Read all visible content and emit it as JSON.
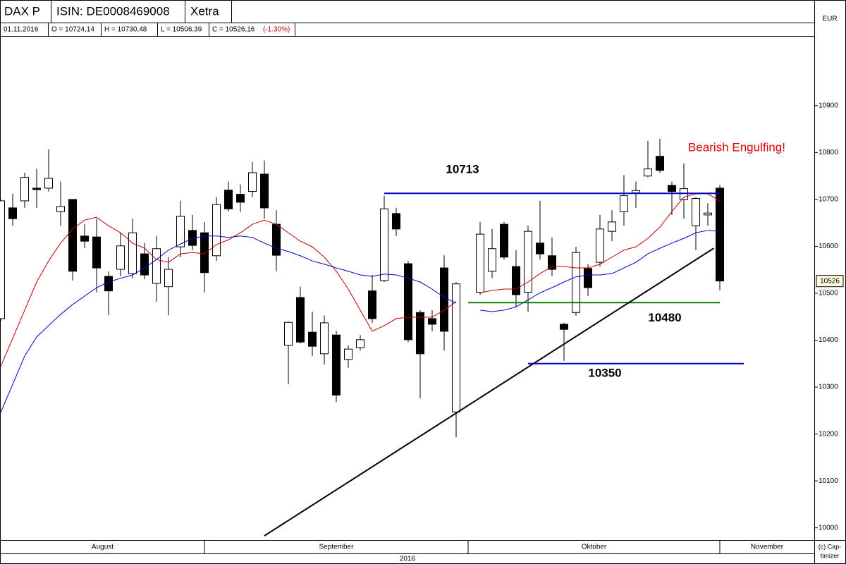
{
  "header": {
    "symbol": "DAX P",
    "isin": "ISIN: DE0008469008",
    "exchange": "Xetra",
    "currency": "EUR",
    "date": "01.11.2016",
    "open": "O = 10724,14",
    "high": "H = 10730,48",
    "low": "L = 10506,39",
    "close": "C = 10526,16",
    "change": "(-1.30%)"
  },
  "chart_data": {
    "type": "candlestick",
    "open": [
      10446,
      10682,
      10697,
      10724,
      10724,
      10674,
      10700,
      10622,
      10620,
      10536,
      10551,
      10542,
      10584,
      10521,
      10514,
      10599,
      10634,
      10629,
      10580,
      10720,
      10711,
      10717,
      10754,
      10647,
      10389,
      10491,
      10417,
      10371,
      10411,
      10359,
      10384,
      10505,
      10527,
      10670,
      10563,
      10459,
      10446,
      10554,
      10247,
      null,
      10502,
      10547,
      10647,
      10557,
      10502,
      10607,
      10580,
      10434,
      10459,
      10553,
      10566,
      10632,
      10674,
      10714,
      10750,
      10792,
      10730,
      10700,
      10644,
      10667,
      10724.14
    ],
    "high": [
      10700,
      10712,
      10757,
      10765,
      10807,
      10738,
      10700,
      10647,
      10659,
      10547,
      10629,
      10659,
      10607,
      10622,
      10577,
      10697,
      10667,
      10652,
      10705,
      10738,
      10732,
      10780,
      10783,
      10677,
      10440,
      10514,
      10461,
      10453,
      10420,
      10389,
      10411,
      10539,
      10708,
      10682,
      10569,
      10464,
      10464,
      10581,
      10524,
      null,
      10652,
      10637,
      10652,
      10592,
      10644,
      10697,
      10619,
      10437,
      10599,
      10562,
      10667,
      10677,
      10752,
      10738,
      10825,
      10829,
      10738,
      10777,
      10705,
      10692,
      10730.48
    ],
    "low": [
      10440,
      10644,
      10682,
      10682,
      10717,
      10644,
      10527,
      10596,
      10502,
      10453,
      10536,
      10532,
      10530,
      10482,
      10453,
      10577,
      10592,
      10502,
      10569,
      10674,
      10674,
      10705,
      10659,
      10547,
      10306,
      10393,
      10366,
      10348,
      10268,
      10341,
      10378,
      10437,
      10524,
      10622,
      10396,
      10276,
      10419,
      10378,
      10193,
      null,
      10497,
      10532,
      10572,
      10471,
      10461,
      10572,
      10536,
      10356,
      10452,
      10494,
      10557,
      10611,
      10644,
      10682,
      10747,
      10757,
      10667,
      10659,
      10592,
      10644,
      10506.39
    ],
    "close": [
      10697,
      10659,
      10747,
      10721,
      10745,
      10685,
      10547,
      10611,
      10554,
      10505,
      10601,
      10629,
      10539,
      10595,
      10551,
      10664,
      10602,
      10544,
      10689,
      10680,
      10694,
      10757,
      10682,
      10581,
      10438,
      10396,
      10387,
      10437,
      10283,
      10381,
      10401,
      10446,
      10680,
      10637,
      10401,
      10371,
      10434,
      10419,
      10520,
      null,
      10626,
      10595,
      10577,
      10497,
      10632,
      10584,
      10551,
      10423,
      10587,
      10512,
      10637,
      10652,
      10708,
      10719,
      10765,
      10762,
      10717,
      10723,
      10702,
      10671,
      10526.16
    ],
    "lines": [
      {
        "color": "#c00000",
        "values": [
          10344,
          10404,
          10464,
          10524,
          10569,
          10607,
          10637,
          10656,
          10662,
          10644,
          10629,
          10607,
          10596,
          10572,
          10566,
          10584,
          10587,
          10584,
          10604,
          10614,
          10629,
          10647,
          10656,
          10647,
          10629,
          10611,
          10599,
          10577,
          10547,
          10509,
          10464,
          10419,
          10431,
          10446,
          10449,
          10449,
          10449,
          10464,
          10482,
          null,
          10501,
          10506,
          10509,
          10509,
          10524,
          10542,
          10557,
          10557,
          10554,
          10554,
          10562,
          10577,
          10592,
          10599,
          10617,
          10641,
          10674,
          10705,
          10712,
          10712,
          10697
        ]
      },
      {
        "color": "#0000cc",
        "values": [
          10246,
          10306,
          10366,
          10407,
          10431,
          10455,
          10476,
          10494,
          10512,
          10524,
          10532,
          10539,
          10554,
          10572,
          10592,
          10605,
          10617,
          10622,
          10622,
          10619,
          10622,
          10619,
          10607,
          10596,
          10589,
          10580,
          10569,
          10562,
          10554,
          10547,
          10539,
          10536,
          10541,
          10539,
          10532,
          10524,
          10509,
          10491,
          10479,
          null,
          10464,
          10461,
          10464,
          10471,
          10486,
          10501,
          10512,
          10524,
          10535,
          10539,
          10539,
          10542,
          10554,
          10566,
          10584,
          10596,
          10607,
          10617,
          10629,
          10634,
          10632
        ]
      }
    ],
    "levels": [
      {
        "value": 10713,
        "from": 32,
        "to": 60,
        "color": "#0000cc"
      },
      {
        "value": 10480,
        "from": 39,
        "to": 60,
        "color": "#008000"
      },
      {
        "value": 10350,
        "from": 44,
        "to": 62,
        "color": "#0000cc"
      }
    ],
    "trendline": {
      "x": [
        22,
        59.5
      ],
      "y": [
        9983,
        10596
      ],
      "color": "#000000"
    },
    "annotation": "Bearish Engulfing!",
    "price_tag": 10526,
    "ylim": [
      9974,
      11047
    ],
    "yticks": [
      10000,
      10100,
      10200,
      10300,
      10400,
      10500,
      10600,
      10700,
      10800,
      10900
    ],
    "months": [
      {
        "label": "August",
        "start": 0
      },
      {
        "label": "September",
        "start": 17
      },
      {
        "label": "Oktober",
        "start": 39
      },
      {
        "label": "November",
        "start": 60
      }
    ],
    "year": "2016",
    "copyright": [
      "(c) Cap-",
      "timizer"
    ]
  }
}
